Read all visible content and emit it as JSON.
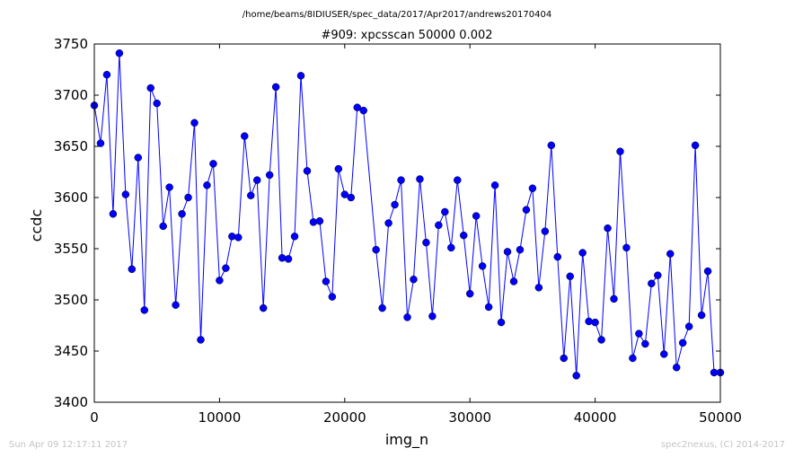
{
  "chart_data": {
    "type": "line",
    "suptitle": "/home/beams/8IDIUSER/spec_data/2017/Apr2017/andrews20170404",
    "title": "#909: xpcsscan 50000 0.002",
    "xlabel": "img_n",
    "ylabel": "ccdc",
    "xlim": [
      0,
      50000
    ],
    "ylim": [
      3400,
      3750
    ],
    "xticks": [
      0,
      10000,
      20000,
      30000,
      40000,
      50000
    ],
    "yticks": [
      3400,
      3450,
      3500,
      3550,
      3600,
      3650,
      3700,
      3750
    ],
    "grid": false,
    "legend": "none",
    "line_color": "#0000ff",
    "marker_color": "#0000ff",
    "x": [
      0,
      500,
      1000,
      1500,
      2000,
      2500,
      3000,
      3500,
      4000,
      4500,
      5000,
      5500,
      6000,
      6500,
      7000,
      7500,
      8000,
      8500,
      9000,
      9500,
      10000,
      10500,
      11000,
      11500,
      12000,
      12500,
      13000,
      13500,
      14000,
      14500,
      15000,
      15500,
      16000,
      16500,
      17000,
      17500,
      18000,
      18500,
      19000,
      19500,
      20000,
      20500,
      21000,
      21500,
      22500,
      23000,
      23500,
      24000,
      24500,
      25000,
      25500,
      26000,
      26500,
      27000,
      27500,
      28000,
      28500,
      29000,
      29500,
      30000,
      30500,
      31000,
      31500,
      32000,
      32500,
      33000,
      33500,
      34000,
      34500,
      35000,
      35500,
      36000,
      36500,
      37000,
      37500,
      38000,
      38500,
      39000,
      39500,
      40000,
      40500,
      41000,
      41500,
      42000,
      42500,
      43000,
      43500,
      44000,
      44500,
      45000,
      45500,
      46000,
      46500,
      47000,
      47500,
      48000,
      48500,
      49000,
      49500,
      50000
    ],
    "y": [
      3690,
      3653,
      3720,
      3584,
      3741,
      3603,
      3530,
      3639,
      3490,
      3707,
      3692,
      3572,
      3610,
      3495,
      3584,
      3600,
      3673,
      3461,
      3612,
      3633,
      3519,
      3531,
      3562,
      3561,
      3660,
      3602,
      3617,
      3492,
      3622,
      3708,
      3541,
      3540,
      3562,
      3719,
      3626,
      3576,
      3577,
      3518,
      3503,
      3628,
      3603,
      3600,
      3688,
      3685,
      3549,
      3492,
      3575,
      3593,
      3617,
      3483,
      3520,
      3618,
      3556,
      3484,
      3573,
      3586,
      3551,
      3617,
      3563,
      3506,
      3582,
      3533,
      3493,
      3612,
      3478,
      3547,
      3518,
      3549,
      3588,
      3609,
      3512,
      3567,
      3651,
      3542,
      3443,
      3523,
      3426,
      3546,
      3479,
      3478,
      3461,
      3570,
      3501,
      3645,
      3551,
      3443,
      3467,
      3457,
      3516,
      3524,
      3447,
      3545,
      3434,
      3458,
      3474,
      3651,
      3485,
      3528,
      3429,
      3429
    ]
  },
  "footer": {
    "timestamp": "Sun Apr 09 12:17:11 2017",
    "credit": "spec2nexus, (C) 2014-2017"
  }
}
